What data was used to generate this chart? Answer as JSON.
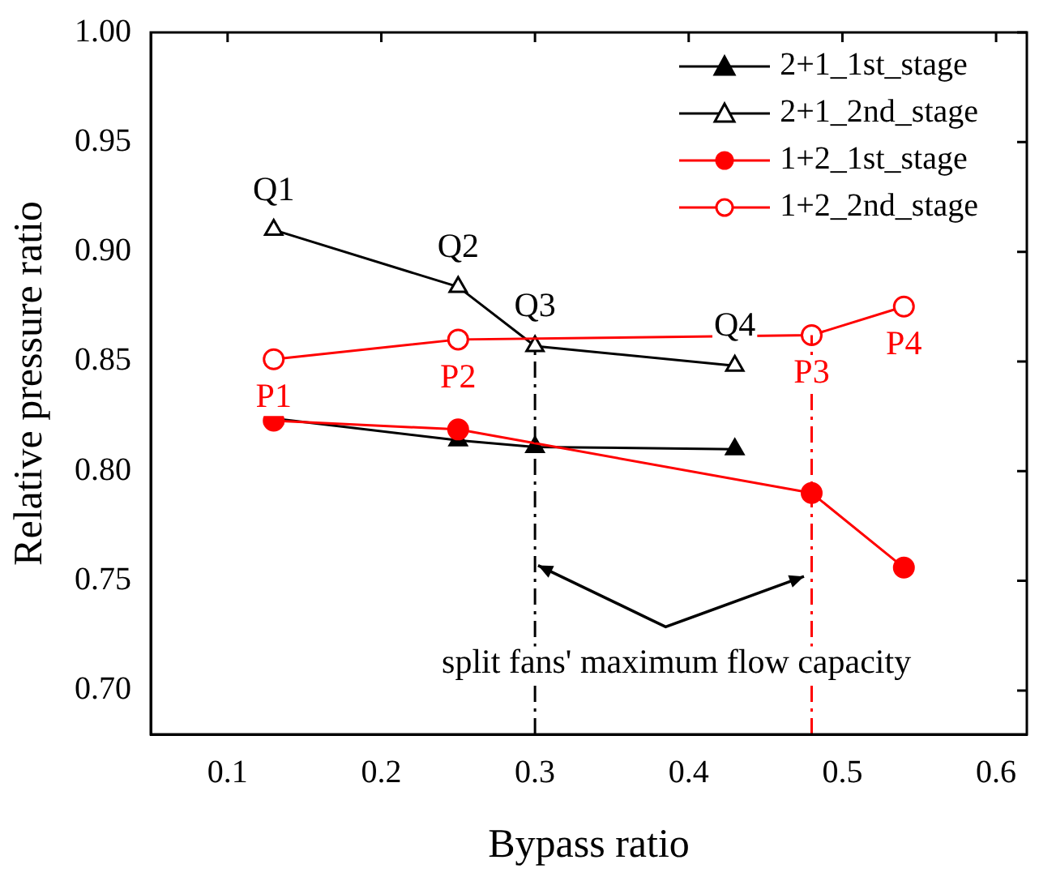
{
  "chart_data": {
    "type": "line",
    "xlabel": "Bypass ratio",
    "ylabel": "Relative pressure ratio",
    "xlim": [
      0.05,
      0.62
    ],
    "xticks": [
      0.1,
      0.2,
      0.3,
      0.4,
      0.5,
      0.6
    ],
    "ylim": [
      0.68,
      1.0
    ],
    "yticks": [
      {
        "value": 0.7,
        "label": "0.70"
      },
      {
        "value": 0.75,
        "label": "0.75"
      },
      {
        "value": 0.8,
        "label": "0.80"
      },
      {
        "value": 0.85,
        "label": "0.85"
      },
      {
        "value": 0.9,
        "label": "0.90"
      },
      {
        "value": 0.95,
        "label": "0.95"
      },
      {
        "value": 1.0,
        "label": "1.00"
      }
    ],
    "grid": false,
    "legend": "top right",
    "line_style": "solid",
    "series": [
      {
        "name": "2+1_1st_stage",
        "color": "#000000",
        "marker": "triangle",
        "x": [
          0.13,
          0.25,
          0.3,
          0.43
        ],
        "values": [
          0.824,
          0.814,
          0.811,
          0.81
        ]
      },
      {
        "name": "2+1_2nd_stage",
        "color": "#000000",
        "marker": "triangle",
        "x": [
          0.13,
          0.25,
          0.3,
          0.43
        ],
        "values": [
          0.91,
          0.884,
          0.857,
          0.848
        ]
      },
      {
        "name": "1+2_1st_stage",
        "color": "#ff0000",
        "marker": "circle",
        "x": [
          0.13,
          0.25,
          0.48,
          0.54
        ],
        "values": [
          0.823,
          0.819,
          0.79,
          0.756
        ]
      },
      {
        "name": "1+2_2nd_stage",
        "color": "#ff0000",
        "marker": "circle",
        "x": [
          0.13,
          0.25,
          0.48,
          0.54
        ],
        "values": [
          0.851,
          0.86,
          0.862,
          0.875
        ]
      }
    ],
    "ref_lines": [
      {
        "axis": "x",
        "value": 0.3,
        "color": "#000000",
        "line_style": "dashed"
      },
      {
        "axis": "x",
        "value": 0.48,
        "color": "#ff0000",
        "line_style": "dashed"
      }
    ],
    "annotations": [
      {
        "text": "Q1",
        "x": 0.13,
        "y": 0.91
      },
      {
        "text": "Q2",
        "x": 0.25,
        "y": 0.884
      },
      {
        "text": "Q3",
        "x": 0.3,
        "y": 0.857
      },
      {
        "text": "Q4",
        "x": 0.43,
        "y": 0.848
      },
      {
        "text": "P1",
        "x": 0.13,
        "y": 0.851
      },
      {
        "text": "P2",
        "x": 0.25,
        "y": 0.86
      },
      {
        "text": "P3",
        "x": 0.48,
        "y": 0.862
      },
      {
        "text": "P4",
        "x": 0.54,
        "y": 0.875
      },
      "split fans' maximum flow capacity"
    ]
  }
}
